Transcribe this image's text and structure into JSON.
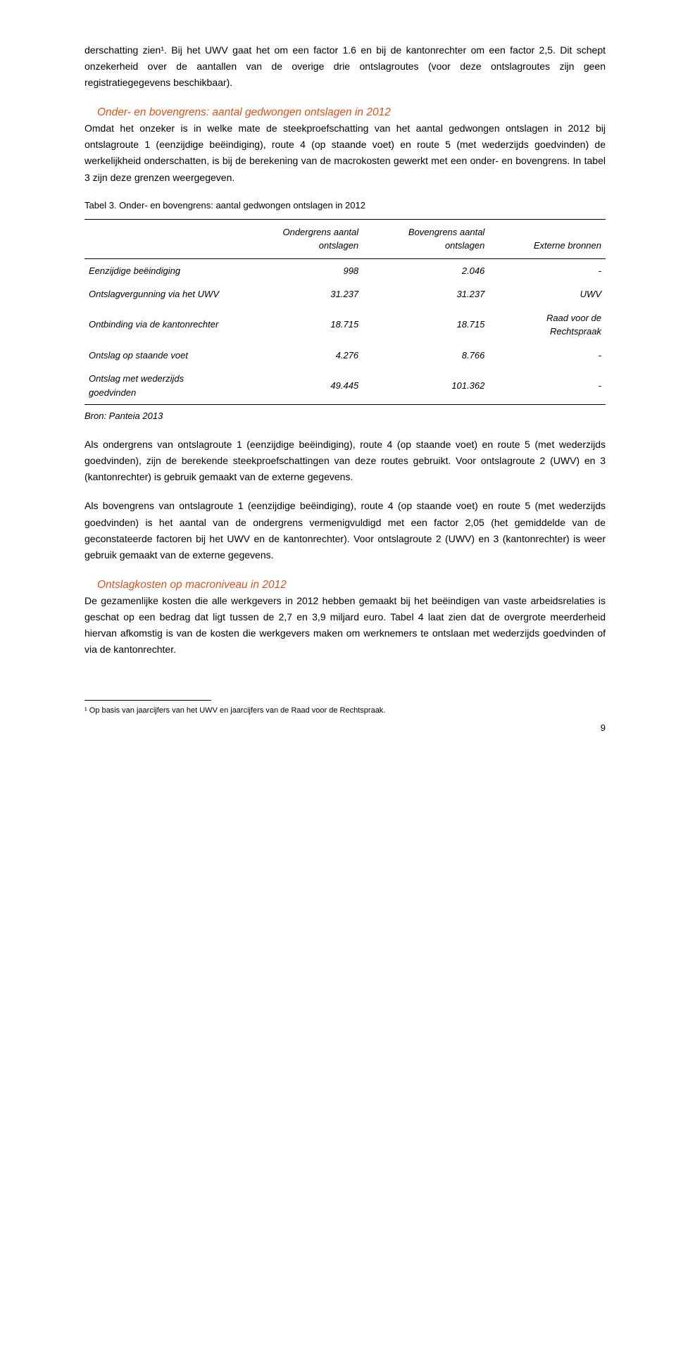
{
  "para1": "derschatting zien¹. Bij het UWV gaat het om een factor 1.6 en bij de kantonrechter om een factor 2,5. Dit schept onzekerheid over de aantallen van de overige drie ontslagroutes (voor deze ontslagroutes zijn geen registratiegegevens beschikbaar).",
  "heading1": "Onder- en bovengrens: aantal gedwongen ontslagen in 2012",
  "para2": "Omdat het onzeker is in welke mate de steekproefschatting van het aantal gedwongen ontslagen in 2012 bij ontslagroute 1 (eenzijdige beëindiging), route 4 (op staande voet) en route 5 (met wederzijds goedvinden) de werkelijkheid onderschatten, is bij de berekening van de macrokosten gewerkt met een onder- en bovengrens. In tabel 3 zijn deze grenzen weergegeven.",
  "table": {
    "caption": "Tabel 3. Onder- en bovengrens: aantal gedwongen ontslagen in 2012",
    "columns": {
      "c0": "",
      "c1": "Ondergrens aantal ontslagen",
      "c2": "Bovengrens aantal ontslagen",
      "c3": "Externe bronnen"
    },
    "rows": [
      {
        "c0": "Eenzijdige beëindiging",
        "c1": "998",
        "c2": "2.046",
        "c3": "-"
      },
      {
        "c0": "Ontslagvergunning via het UWV",
        "c1": "31.237",
        "c2": "31.237",
        "c3": "UWV"
      },
      {
        "c0": "Ontbinding via de kantonrechter",
        "c1": "18.715",
        "c2": "18.715",
        "c3": "Raad voor de Rechtspraak"
      },
      {
        "c0": "Ontslag op staande voet",
        "c1": "4.276",
        "c2": "8.766",
        "c3": "-"
      },
      {
        "c0": "Ontslag met wederzijds goedvinden",
        "c1": "49.445",
        "c2": "101.362",
        "c3": "-"
      }
    ],
    "source": "Bron: Panteia 2013"
  },
  "para3": "Als ondergrens van ontslagroute 1 (eenzijdige beëindiging), route 4 (op staande voet) en route 5 (met wederzijds goedvinden), zijn de berekende steekproefschattingen van deze routes gebruikt. Voor ontslagroute 2 (UWV) en 3 (kantonrechter) is gebruik gemaakt van de externe gegevens.",
  "para4": "Als bovengrens van ontslagroute 1 (eenzijdige beëindiging), route 4 (op staande voet) en route 5 (met wederzijds goedvinden) is het aantal van de ondergrens vermenigvuldigd met een factor 2,05 (het gemiddelde van de geconstateerde factoren bij het UWV en de kantonrechter). Voor ontslagroute 2 (UWV) en 3 (kantonrechter) is weer gebruik gemaakt van de externe gegevens.",
  "heading2": "Ontslagkosten op macroniveau in 2012",
  "para5": "De gezamenlijke kosten die alle werkgevers in 2012 hebben gemaakt bij het beëindigen van vaste arbeidsrelaties is geschat op een bedrag dat ligt tussen de 2,7 en 3,9 miljard euro. Tabel 4 laat zien dat de overgrote meerderheid hiervan afkomstig is van de kosten die werkgevers maken om werknemers te ontslaan met wederzijds goedvinden of via de kantonrechter.",
  "footnote": "¹ Op basis van jaarcijfers van het UWV en jaarcijfers van de Raad voor de Rechtspraak.",
  "pageNumber": "9"
}
